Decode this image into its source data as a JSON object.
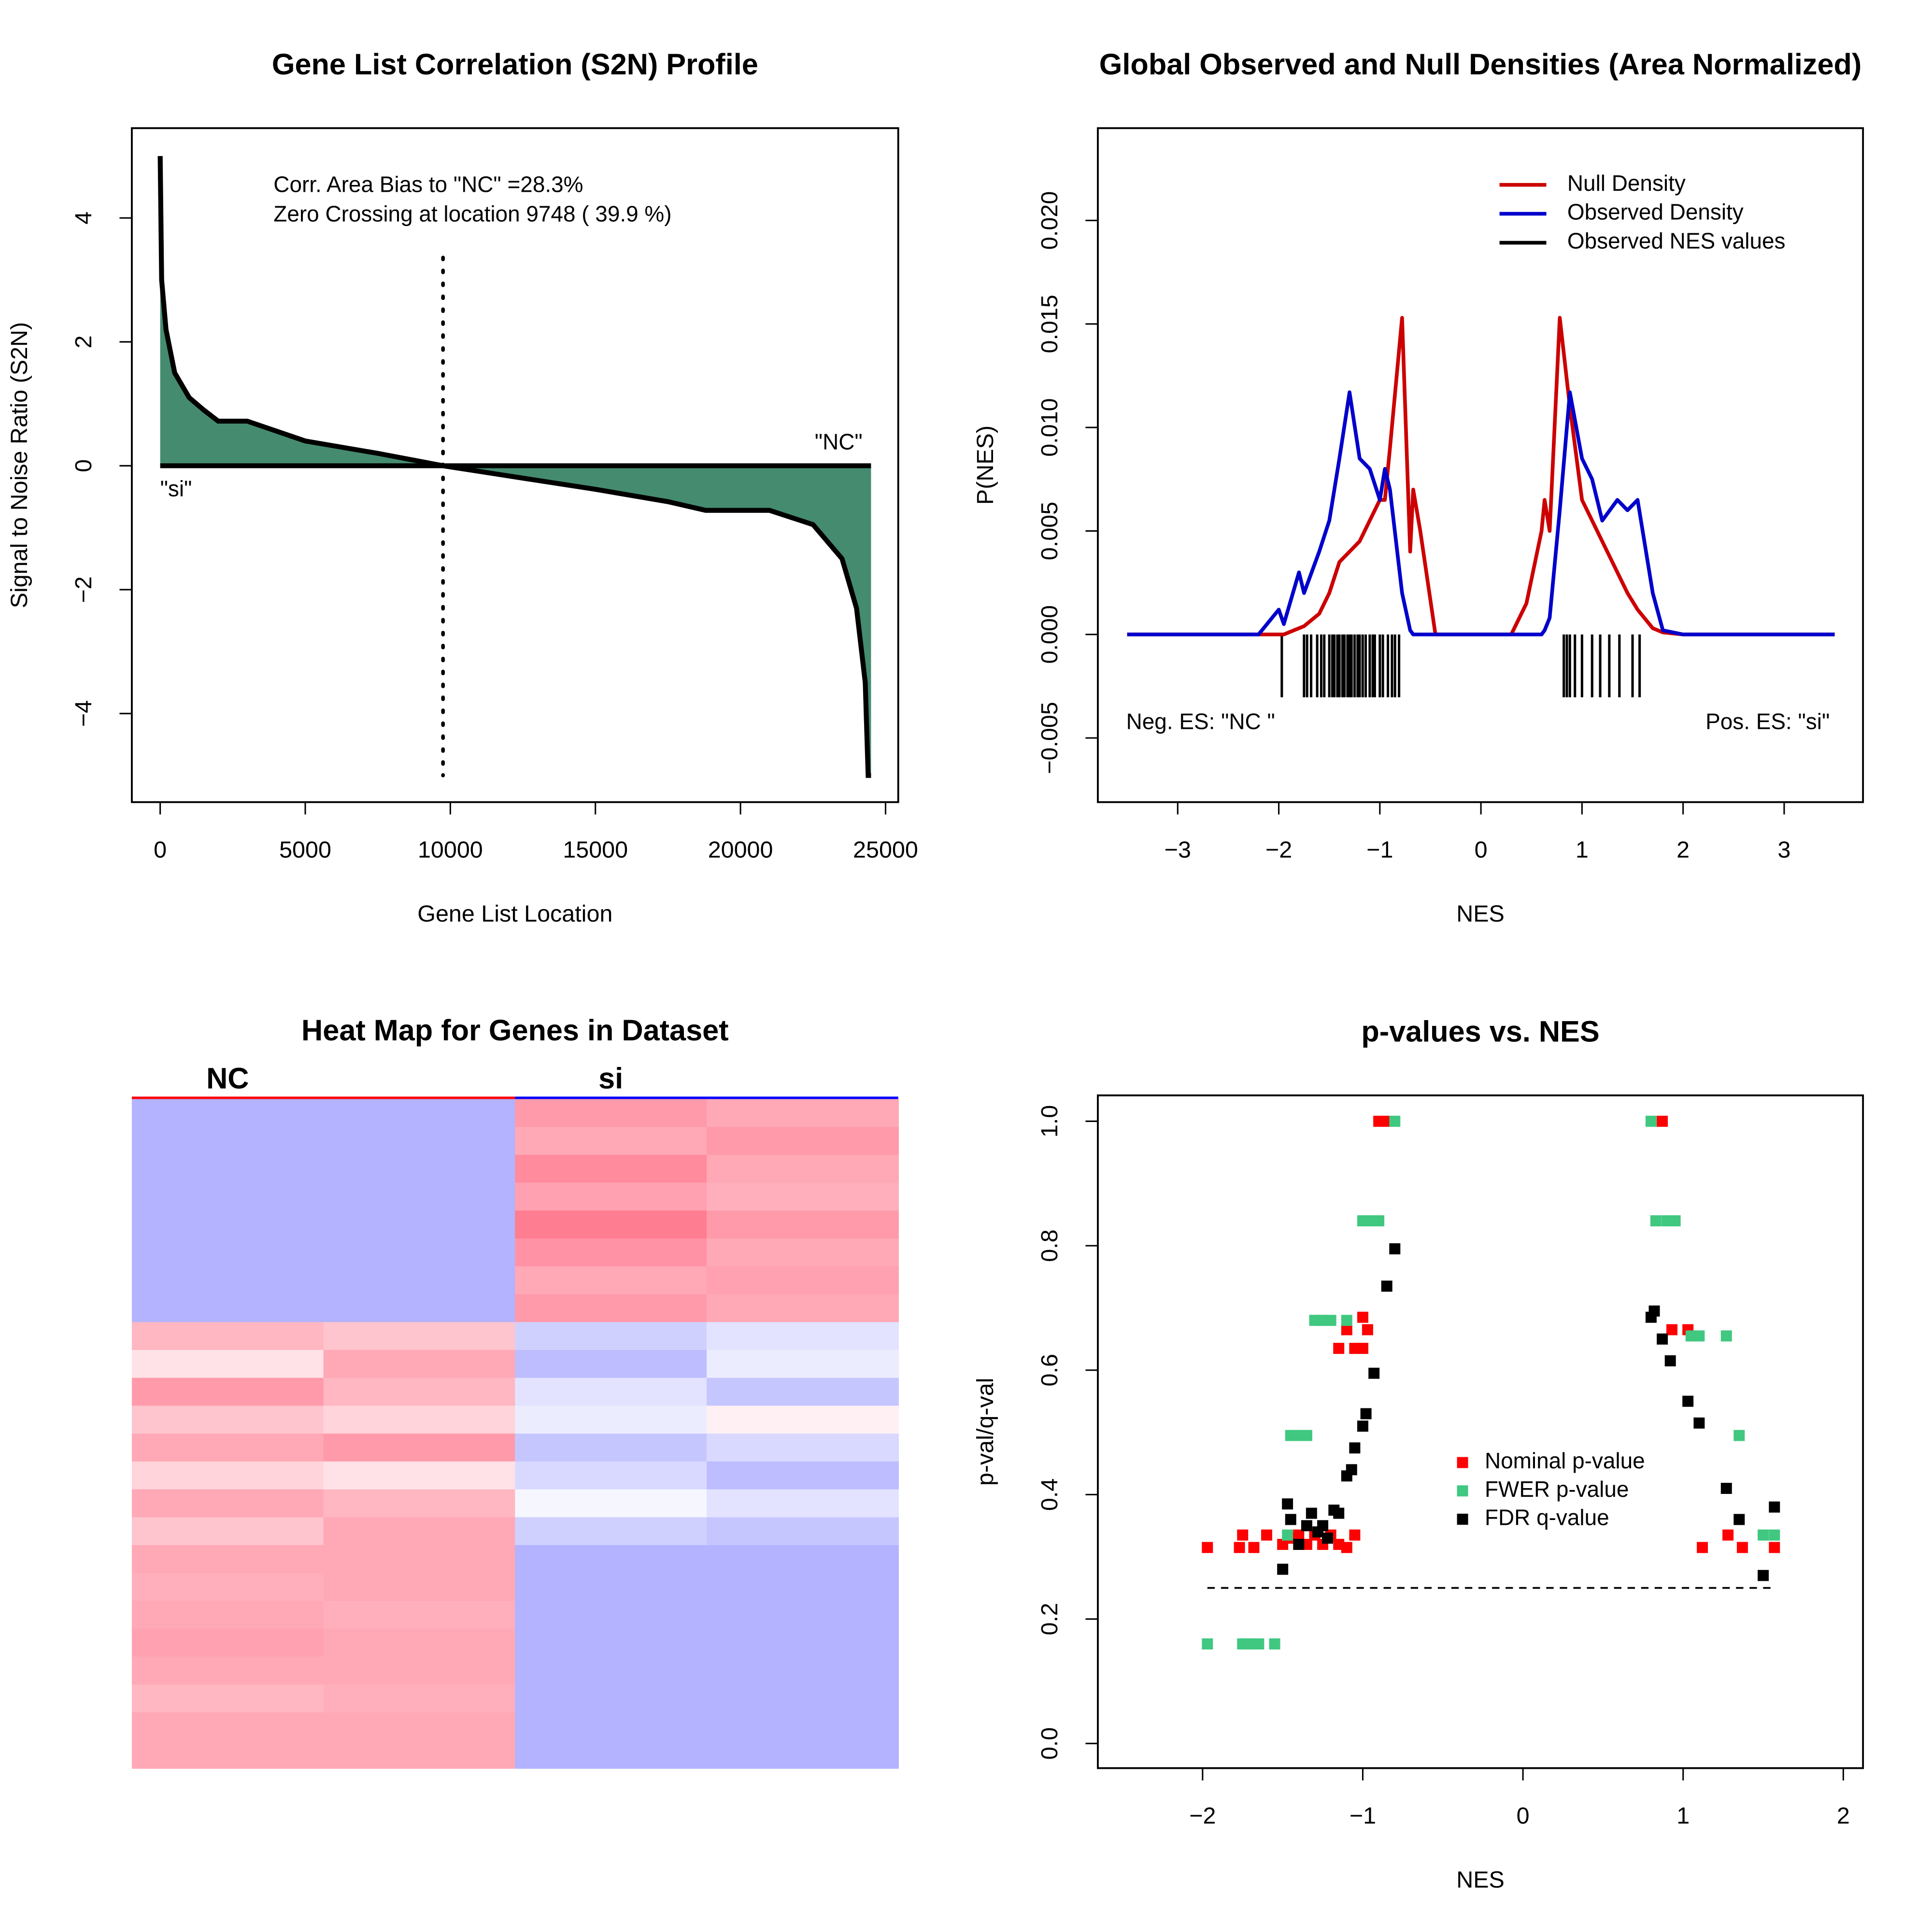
{
  "chart_data": [
    {
      "type": "area",
      "title": "Gene List Correlation (S2N) Profile",
      "x_label": "Gene List Location",
      "y_label": "Signal to Noise Ratio (S2N)",
      "color": "#458b70",
      "x": [
        0,
        50,
        200,
        500,
        1000,
        1500,
        2000,
        3000,
        5000,
        7500,
        9748,
        12500,
        15000,
        17500,
        18800,
        21000,
        22500,
        23500,
        24000,
        24300,
        24400,
        24500
      ],
      "values": [
        5,
        3,
        2.2,
        1.5,
        1.1,
        0.9,
        0.72,
        0.72,
        0.4,
        0.2,
        0,
        -0.2,
        -0.38,
        -0.58,
        -0.72,
        -0.72,
        -0.95,
        -1.5,
        -2.3,
        -3.5,
        -5,
        -5
      ],
      "zero_crossing": 9748,
      "xlim": [
        -977,
        25437
      ],
      "ylim": [
        -5.43,
        5.45
      ],
      "xticks": [
        0,
        5000,
        10000,
        15000,
        20000,
        25000
      ],
      "yticks": [
        {
          "value": -4,
          "label": "−4"
        },
        {
          "value": -2,
          "label": "−2"
        },
        0,
        2,
        4
      ],
      "annotations": [
        "Corr. Area Bias to \"NC\" =28.3%",
        "Zero Crossing at location  9748  ( 39.9  %)",
        "\"NC\"",
        "\"si\""
      ]
    },
    {
      "type": "line",
      "title": "Global Observed and Null Densities (Area Normalized)",
      "x_label": "NES",
      "y_label": "P(NES)",
      "x": [
        -3.5,
        -2.2,
        -2.0,
        -1.95,
        -1.8,
        -1.75,
        -1.6,
        -1.5,
        -1.4,
        -1.3,
        -1.2,
        -1.1,
        -1.0,
        -0.95,
        -0.9,
        -0.78,
        -0.7,
        -0.67,
        -0.6,
        -0.45,
        -0.3,
        0.3,
        0.45,
        0.6,
        0.63,
        0.68,
        0.78,
        0.88,
        1.0,
        1.1,
        1.2,
        1.35,
        1.45,
        1.55,
        1.7,
        1.8,
        2.0,
        3.5
      ],
      "series": [
        {
          "name": "Null Density",
          "color": "#cc0000",
          "values": [
            0,
            0,
            0,
            0,
            0.0003,
            0.0004,
            0.001,
            0.002,
            0.0035,
            0.004,
            0.0045,
            0.0055,
            0.0065,
            0.0065,
            0.009,
            0.0153,
            0.004,
            0.007,
            0.005,
            0,
            0,
            0,
            0.0015,
            0.005,
            0.0065,
            0.005,
            0.0153,
            0.011,
            0.0065,
            0.0055,
            0.0045,
            0.003,
            0.002,
            0.0012,
            0.0003,
            0.0001,
            0,
            0
          ]
        },
        {
          "name": "Observed Density",
          "color": "#0000cc",
          "values": [
            0,
            0,
            0.0012,
            0.0005,
            0.003,
            0.002,
            0.004,
            0.0055,
            0.0085,
            0.0117,
            0.0085,
            0.008,
            0.0065,
            0.008,
            0.007,
            0.002,
            0.0002,
            0,
            0,
            0,
            0,
            0,
            0,
            0,
            0.0002,
            0.0008,
            0.006,
            0.0117,
            0.0085,
            0.0075,
            0.0055,
            0.0065,
            0.006,
            0.0065,
            0.002,
            0.0002,
            0,
            0
          ]
        }
      ],
      "rug": {
        "name": "Observed NES values",
        "color": "#000000",
        "values": [
          -1.97,
          -1.75,
          -1.72,
          -1.68,
          -1.62,
          -1.58,
          -1.55,
          -1.5,
          -1.47,
          -1.45,
          -1.42,
          -1.4,
          -1.37,
          -1.35,
          -1.32,
          -1.3,
          -1.28,
          -1.25,
          -1.22,
          -1.2,
          -1.17,
          -1.14,
          -1.1,
          -1.07,
          -1.05,
          -1.0,
          -0.97,
          -0.92,
          -0.88,
          -0.85,
          -0.81,
          0.82,
          0.85,
          0.88,
          0.93,
          1.0,
          1.1,
          1.18,
          1.27,
          1.37,
          1.5,
          1.57
        ]
      },
      "legend": "topright",
      "xlim": [
        -3.79,
        3.78
      ],
      "ylim": [
        -0.0081,
        0.02446
      ],
      "xticks": [
        {
          "value": -3,
          "label": "−3"
        },
        {
          "value": -2,
          "label": "−2"
        },
        {
          "value": -1,
          "label": "−1"
        },
        0,
        1,
        2,
        3
      ],
      "yticks": [
        {
          "value": -0.005,
          "label": "−0.005"
        },
        {
          "value": 0,
          "label": "0.000"
        },
        0.005,
        {
          "value": 0.01,
          "label": "0.010"
        },
        0.015,
        {
          "value": 0.02,
          "label": "0.020"
        }
      ],
      "annotations": [
        "Neg. ES: \"NC \"",
        "Pos. ES: \"si\""
      ]
    },
    {
      "type": "heatmap",
      "title": "Heat Map for Genes in Dataset",
      "column_groups": [
        {
          "name": "NC",
          "color": "#ff0000"
        },
        {
          "name": "si",
          "color": "#0000ff"
        }
      ],
      "colormap": [
        "#a0a0ff",
        "#ffffff",
        "#ff6e85"
      ],
      "values": [
        [
          -0.8,
          -0.8,
          0.7,
          0.6
        ],
        [
          -0.8,
          -0.8,
          0.6,
          0.7
        ],
        [
          -0.8,
          -0.8,
          0.8,
          0.6
        ],
        [
          -0.8,
          -0.8,
          0.65,
          0.55
        ],
        [
          -0.8,
          -0.8,
          0.9,
          0.7
        ],
        [
          -0.8,
          -0.8,
          0.75,
          0.6
        ],
        [
          -0.8,
          -0.8,
          0.6,
          0.65
        ],
        [
          -0.8,
          -0.8,
          0.7,
          0.6
        ],
        [
          0.5,
          0.4,
          -0.5,
          -0.3
        ],
        [
          0.2,
          0.6,
          -0.7,
          -0.2
        ],
        [
          0.7,
          0.5,
          -0.3,
          -0.6
        ],
        [
          0.4,
          0.3,
          -0.2,
          0.1
        ],
        [
          0.6,
          0.7,
          -0.6,
          -0.4
        ],
        [
          0.3,
          0.2,
          -0.4,
          -0.7
        ],
        [
          0.6,
          0.5,
          -0.1,
          -0.3
        ],
        [
          0.4,
          0.6,
          -0.5,
          -0.6
        ],
        [
          0.6,
          0.6,
          -0.8,
          -0.8
        ],
        [
          0.55,
          0.6,
          -0.8,
          -0.8
        ],
        [
          0.6,
          0.55,
          -0.8,
          -0.8
        ],
        [
          0.65,
          0.6,
          -0.8,
          -0.8
        ],
        [
          0.6,
          0.6,
          -0.8,
          -0.8
        ],
        [
          0.5,
          0.55,
          -0.8,
          -0.8
        ],
        [
          0.6,
          0.6,
          -0.8,
          -0.8
        ],
        [
          0.6,
          0.6,
          -0.8,
          -0.8
        ]
      ]
    },
    {
      "type": "scatter",
      "title": "p-values vs. NES",
      "x_label": "NES",
      "y_label": "p-val/q-val",
      "series": [
        {
          "name": "Nominal p-value",
          "color": "#ff0000",
          "x": [
            -1.97,
            -1.75,
            -1.77,
            -1.68,
            -1.6,
            -1.5,
            -1.45,
            -1.4,
            -1.35,
            -1.3,
            -1.25,
            -1.2,
            -1.15,
            -1.1,
            -1.05,
            -1.1,
            -1.0,
            -0.97,
            -1.0,
            -1.05,
            -1.15,
            -0.9,
            -0.85,
            0.87,
            0.93,
            1.03,
            1.12,
            1.28,
            1.37,
            1.57
          ],
          "values": [
            0.315,
            0.335,
            0.315,
            0.315,
            0.335,
            0.32,
            0.33,
            0.335,
            0.32,
            0.335,
            0.32,
            0.335,
            0.32,
            0.315,
            0.335,
            0.665,
            0.685,
            0.665,
            0.635,
            0.635,
            0.635,
            1.0,
            1.0,
            1.0,
            0.665,
            0.665,
            0.315,
            0.335,
            0.315,
            0.315
          ]
        },
        {
          "name": "FWER p-value",
          "color": "#40c880",
          "x": [
            -1.97,
            -1.75,
            -1.7,
            -1.65,
            -1.55,
            -1.47,
            -1.45,
            -1.4,
            -1.35,
            -1.3,
            -1.25,
            -1.2,
            -1.1,
            -1.0,
            -0.95,
            -0.9,
            -0.8,
            0.8,
            0.83,
            0.9,
            0.95,
            1.05,
            1.1,
            1.27,
            1.35,
            1.5,
            1.57
          ],
          "values": [
            0.16,
            0.16,
            0.16,
            0.16,
            0.16,
            0.335,
            0.495,
            0.495,
            0.495,
            0.68,
            0.68,
            0.68,
            0.68,
            0.84,
            0.84,
            0.84,
            1.0,
            1.0,
            0.84,
            0.84,
            0.84,
            0.655,
            0.655,
            0.655,
            0.495,
            0.335,
            0.335
          ]
        },
        {
          "name": "FDR q-value",
          "color": "#000000",
          "x": [
            -1.5,
            -1.47,
            -1.45,
            -1.4,
            -1.35,
            -1.32,
            -1.28,
            -1.25,
            -1.22,
            -1.18,
            -1.15,
            -1.1,
            -1.07,
            -1.05,
            -1.0,
            -0.98,
            -0.93,
            -0.85,
            -0.8,
            0.8,
            0.82,
            0.87,
            0.92,
            1.03,
            1.1,
            1.27,
            1.35,
            1.5,
            1.57
          ],
          "values": [
            0.28,
            0.385,
            0.36,
            0.32,
            0.35,
            0.37,
            0.34,
            0.35,
            0.33,
            0.375,
            0.37,
            0.43,
            0.44,
            0.475,
            0.51,
            0.53,
            0.595,
            0.735,
            0.795,
            0.685,
            0.695,
            0.65,
            0.615,
            0.55,
            0.515,
            0.41,
            0.36,
            0.27,
            0.38
          ]
        }
      ],
      "hline": 0.25,
      "legend": "right",
      "xlim": [
        -2.654,
        2.123
      ],
      "ylim": [
        -0.0396,
        1.0416
      ],
      "xticks": [
        {
          "value": -2,
          "label": "−2"
        },
        {
          "value": -1,
          "label": "−1"
        },
        0,
        1,
        2
      ],
      "yticks": [
        {
          "value": 0,
          "label": "0.0"
        },
        0.2,
        0.4,
        0.6,
        0.8,
        {
          "value": 1,
          "label": "1.0"
        }
      ]
    }
  ]
}
